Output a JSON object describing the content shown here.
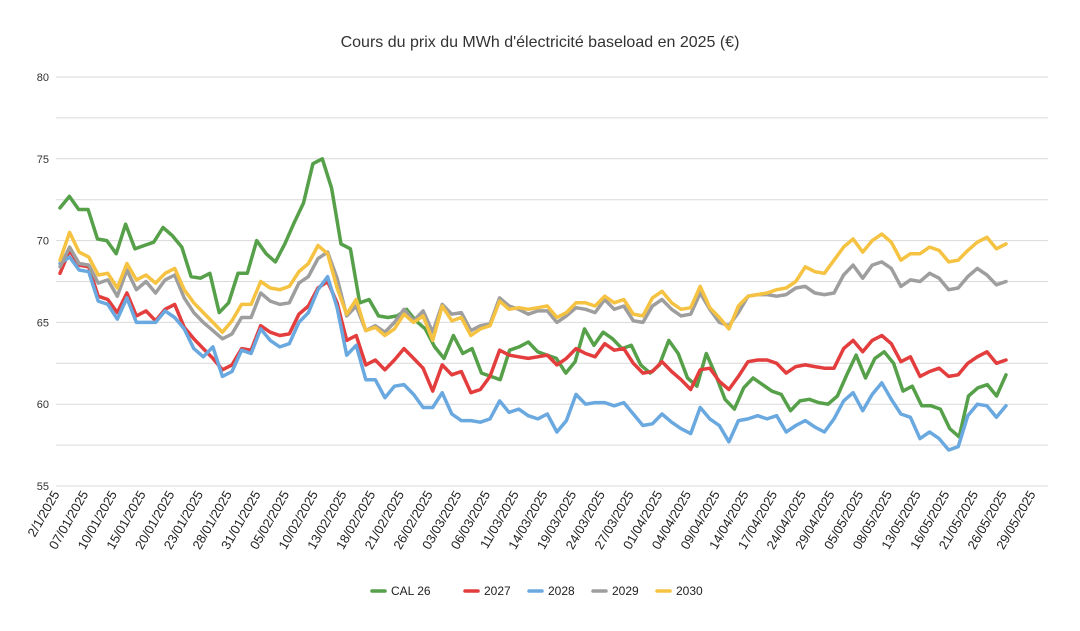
{
  "chart_data": {
    "type": "line",
    "title": "Cours du prix du MWh d'électricité baseload en 2025 (€)",
    "xlabel": "",
    "ylabel": "",
    "ylim": [
      55,
      80
    ],
    "yticks": [
      55,
      60,
      65,
      70,
      75,
      80
    ],
    "grid": true,
    "legend_position": "bottom",
    "x_tick_labels": [
      "2/1/2025",
      "07/01/2025",
      "10/01/2025",
      "15/01/2025",
      "20/01/2025",
      "23/01/2025",
      "28/01/2025",
      "31/01/2025",
      "05/02/2025",
      "10/02/2025",
      "13/02/2025",
      "18/02/2025",
      "21/02/2025",
      "26/02/2025",
      "03/03/2025",
      "06/03/2025",
      "11/03/2025",
      "14/03/2025",
      "19/03/2025",
      "24/03/2025",
      "27/03/2025",
      "01/04/2025",
      "04/04/2025",
      "09/04/2025",
      "14/04/2025",
      "17/04/2025",
      "24/04/2025",
      "29/04/2025",
      "05/05/2025",
      "08/05/2025",
      "13/05/2025",
      "16/05/2025",
      "21/05/2025",
      "26/05/2025",
      "29/05/2025"
    ],
    "series": [
      {
        "name": "CAL 26",
        "color": "#55a049",
        "values": [
          72.0,
          72.7,
          71.9,
          71.9,
          70.1,
          70.0,
          69.2,
          71.0,
          69.5,
          69.7,
          69.9,
          70.8,
          70.3,
          69.6,
          67.8,
          67.7,
          68.0,
          65.6,
          66.2,
          68.0,
          68.0,
          70.0,
          69.2,
          68.7,
          69.8,
          71.1,
          72.3,
          74.7,
          75.0,
          73.2,
          69.8,
          69.5,
          66.2,
          66.4,
          65.4,
          65.3,
          65.4,
          65.8,
          65.1,
          64.6,
          63.5,
          62.8,
          64.2,
          63.1,
          63.4,
          61.9,
          61.7,
          61.5,
          63.3,
          63.5,
          63.8,
          63.2,
          63.0,
          62.8,
          61.9,
          62.6,
          64.6,
          63.6,
          64.4,
          64.0,
          63.4,
          63.6,
          62.4,
          61.9,
          62.4,
          63.9,
          63.1,
          61.6,
          61.1,
          63.1,
          61.8,
          60.3,
          59.7,
          61.0,
          61.6,
          61.2,
          60.8,
          60.6,
          59.6,
          60.2,
          60.3,
          60.1,
          60.0,
          60.5,
          61.8,
          63.0,
          61.6,
          62.8,
          63.2,
          62.5,
          60.8,
          61.1,
          59.9,
          59.9,
          59.7,
          58.5,
          58.0,
          60.5,
          61.0,
          61.2,
          60.5,
          61.8
        ]
      },
      {
        "name": "2027",
        "color": "#e33d3d",
        "values": [
          68.0,
          69.4,
          68.5,
          68.4,
          66.6,
          66.4,
          65.6,
          66.8,
          65.4,
          65.7,
          65.1,
          65.8,
          66.1,
          64.7,
          64.0,
          63.4,
          62.8,
          62.1,
          62.4,
          63.4,
          63.3,
          64.8,
          64.4,
          64.2,
          64.3,
          65.5,
          66.0,
          67.1,
          67.5,
          66.2,
          63.9,
          64.2,
          62.4,
          62.7,
          62.1,
          62.7,
          63.4,
          62.8,
          62.2,
          60.8,
          62.4,
          61.8,
          62.0,
          60.7,
          60.9,
          61.7,
          63.3,
          63.0,
          62.9,
          62.8,
          62.9,
          63.0,
          62.4,
          62.8,
          63.4,
          63.1,
          62.9,
          63.7,
          63.3,
          63.4,
          62.5,
          61.9,
          62.0,
          62.6,
          62.0,
          61.5,
          60.9,
          62.1,
          62.2,
          61.4,
          60.9,
          61.7,
          62.6,
          62.7,
          62.7,
          62.5,
          61.9,
          62.3,
          62.4,
          62.3,
          62.2,
          62.2,
          63.4,
          63.9,
          63.2,
          63.9,
          64.2,
          63.7,
          62.6,
          62.9,
          61.7,
          62.0,
          62.2,
          61.7,
          61.8,
          62.5,
          62.9,
          63.2,
          62.5,
          62.7
        ]
      },
      {
        "name": "2028",
        "color": "#6aa8e0",
        "values": [
          68.6,
          69.0,
          68.2,
          68.1,
          66.3,
          66.1,
          65.2,
          66.5,
          65.0,
          65.0,
          65.0,
          65.7,
          65.3,
          64.6,
          63.4,
          62.9,
          63.5,
          61.7,
          62.0,
          63.3,
          63.1,
          64.6,
          63.9,
          63.5,
          63.7,
          65.0,
          65.6,
          67.0,
          67.8,
          65.9,
          63.0,
          63.6,
          61.5,
          61.5,
          60.4,
          61.1,
          61.2,
          60.6,
          59.8,
          59.8,
          60.7,
          59.4,
          59.0,
          59.0,
          58.9,
          59.1,
          60.2,
          59.5,
          59.7,
          59.3,
          59.1,
          59.4,
          58.3,
          59.0,
          60.6,
          60.0,
          60.1,
          60.1,
          59.9,
          60.1,
          59.4,
          58.7,
          58.8,
          59.4,
          58.9,
          58.5,
          58.2,
          59.8,
          59.1,
          58.7,
          57.7,
          59.0,
          59.1,
          59.3,
          59.1,
          59.3,
          58.3,
          58.7,
          59.0,
          58.6,
          58.3,
          59.1,
          60.2,
          60.7,
          59.6,
          60.6,
          61.3,
          60.3,
          59.4,
          59.2,
          57.9,
          58.3,
          57.9,
          57.2,
          57.4,
          59.3,
          60.0,
          59.9,
          59.2,
          59.9
        ]
      },
      {
        "name": "2029",
        "color": "#9e9e9e",
        "values": [
          68.4,
          69.6,
          68.6,
          68.5,
          67.4,
          67.6,
          66.6,
          68.2,
          67.0,
          67.5,
          66.8,
          67.6,
          67.9,
          66.5,
          65.6,
          65.0,
          64.5,
          64.0,
          64.3,
          65.3,
          65.3,
          66.8,
          66.3,
          66.1,
          66.2,
          67.4,
          67.8,
          68.9,
          69.3,
          67.7,
          65.4,
          66.0,
          64.5,
          64.8,
          64.4,
          65.0,
          65.8,
          65.1,
          65.7,
          64.4,
          66.1,
          65.5,
          65.6,
          64.5,
          64.8,
          64.9,
          66.5,
          66.0,
          65.8,
          65.5,
          65.7,
          65.7,
          65.0,
          65.4,
          65.9,
          65.8,
          65.6,
          66.4,
          65.8,
          66.0,
          65.1,
          65.0,
          66.0,
          66.4,
          65.8,
          65.4,
          65.5,
          66.8,
          65.8,
          65.0,
          64.8,
          65.6,
          66.6,
          66.7,
          66.7,
          66.6,
          66.7,
          67.1,
          67.2,
          66.8,
          66.7,
          66.8,
          67.9,
          68.5,
          67.7,
          68.5,
          68.7,
          68.3,
          67.2,
          67.6,
          67.5,
          68.0,
          67.7,
          67.0,
          67.1,
          67.8,
          68.3,
          67.9,
          67.3,
          67.5
        ]
      },
      {
        "name": "2030",
        "color": "#f5c242",
        "values": [
          68.8,
          70.5,
          69.3,
          69.0,
          67.9,
          68.0,
          67.1,
          68.6,
          67.6,
          67.9,
          67.4,
          68.0,
          68.3,
          67.0,
          66.2,
          65.6,
          65.0,
          64.4,
          65.1,
          66.1,
          66.1,
          67.5,
          67.1,
          67.0,
          67.2,
          68.1,
          68.6,
          69.7,
          69.2,
          67.1,
          65.5,
          66.4,
          64.5,
          64.7,
          64.2,
          64.6,
          65.5,
          65.0,
          65.4,
          63.9,
          66.0,
          65.1,
          65.3,
          64.2,
          64.6,
          64.8,
          66.3,
          65.8,
          65.9,
          65.8,
          65.9,
          66.0,
          65.3,
          65.6,
          66.2,
          66.2,
          66.0,
          66.6,
          66.2,
          66.4,
          65.5,
          65.4,
          66.5,
          66.9,
          66.2,
          65.8,
          65.9,
          67.2,
          65.9,
          65.3,
          64.6,
          66.0,
          66.6,
          66.7,
          66.8,
          67.0,
          67.1,
          67.5,
          68.4,
          68.1,
          68.0,
          68.8,
          69.6,
          70.1,
          69.3,
          70.0,
          70.4,
          69.9,
          68.8,
          69.2,
          69.2,
          69.6,
          69.4,
          68.7,
          68.8,
          69.4,
          69.9,
          70.2,
          69.5,
          69.8
        ]
      }
    ]
  }
}
